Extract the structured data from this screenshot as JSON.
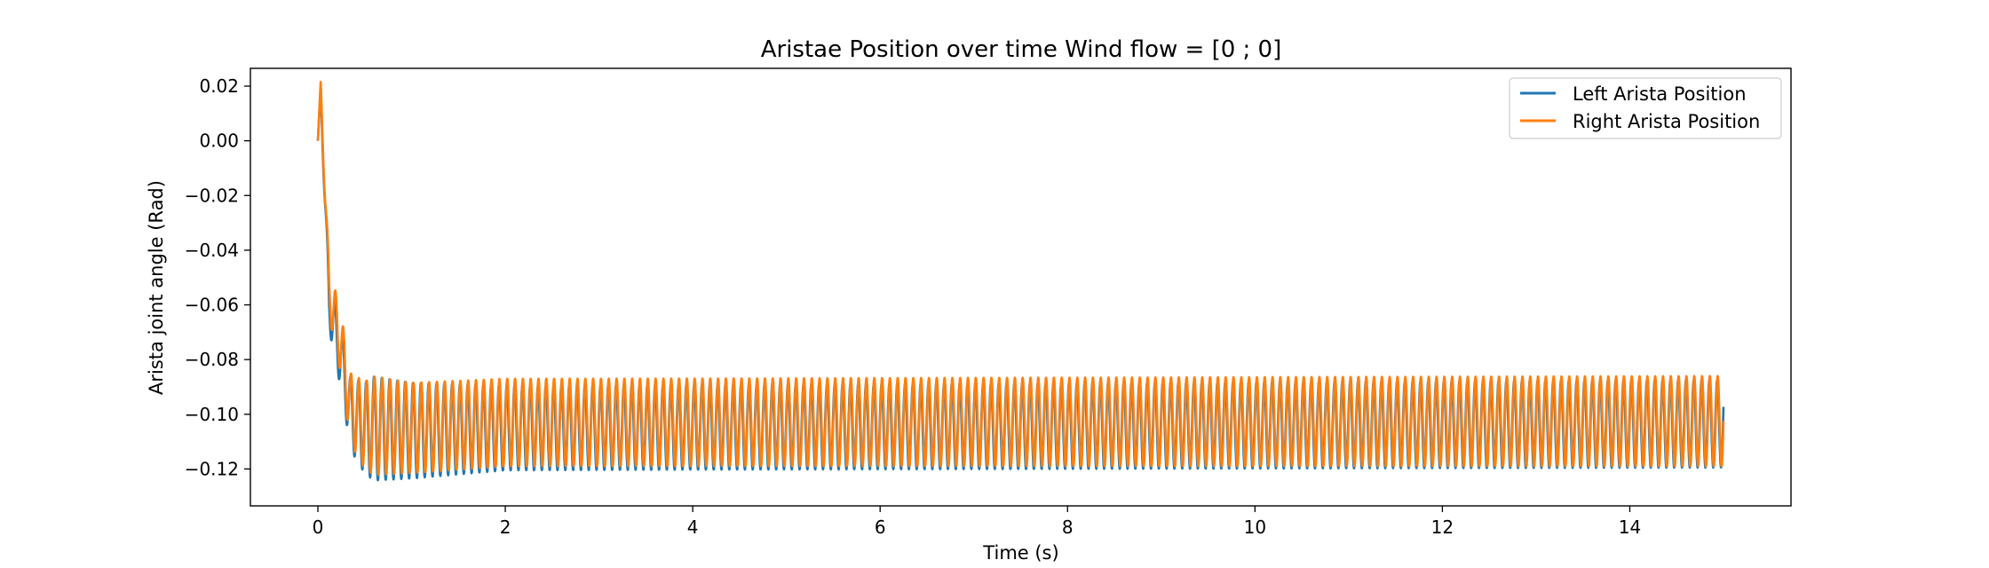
{
  "chart_data": {
    "type": "line",
    "title": "Aristae Position over time Wind flow = [0 ; 0]",
    "xlabel": "Time (s)",
    "ylabel": "Arista joint angle (Rad)",
    "xlim": [
      -0.72,
      15.72
    ],
    "ylim": [
      -0.1335,
      0.0265
    ],
    "xticks": [
      0,
      2,
      4,
      6,
      8,
      10,
      12,
      14
    ],
    "xtick_labels": [
      "0",
      "2",
      "4",
      "6",
      "8",
      "10",
      "12",
      "14"
    ],
    "yticks": [
      0.02,
      0.0,
      -0.02,
      -0.04,
      -0.06,
      -0.08,
      -0.1,
      -0.12
    ],
    "ytick_labels": [
      "0.02",
      "0.00",
      "−0.02",
      "−0.04",
      "−0.06",
      "−0.08",
      "−0.10",
      "−0.12"
    ],
    "grid": false,
    "legend": "top-right",
    "series": [
      {
        "name": "Left Arista Position",
        "color": "#1f77b4",
        "oscillation_hz": 12,
        "t_end": 15,
        "envelope": [
          {
            "t": 0.0,
            "y": 0.0
          },
          {
            "t": 0.03,
            "y": 0.018
          },
          {
            "t": 0.12,
            "y": -0.06
          },
          {
            "t": 0.25,
            "y": -0.08
          },
          {
            "t": 0.35,
            "y": -0.1
          },
          {
            "t": 0.5,
            "y": -0.105
          },
          {
            "t": 1.0,
            "y": -0.106
          },
          {
            "t": 2.0,
            "y": -0.105
          },
          {
            "t": 15.0,
            "y": -0.1035
          }
        ],
        "amplitude": [
          {
            "t": 0.0,
            "a": 0.0
          },
          {
            "t": 0.15,
            "a": 0.01
          },
          {
            "t": 0.3,
            "a": 0.012
          },
          {
            "t": 0.6,
            "a": 0.019
          },
          {
            "t": 1.0,
            "a": 0.0175
          },
          {
            "t": 2.0,
            "a": 0.0155
          },
          {
            "t": 4.0,
            "a": 0.0155
          },
          {
            "t": 15.0,
            "a": 0.016
          }
        ]
      },
      {
        "name": "Right Arista Position",
        "color": "#ff7f0e",
        "oscillation_hz": 12,
        "t_end": 15,
        "envelope": [
          {
            "t": 0.0,
            "y": 0.0
          },
          {
            "t": 0.03,
            "y": 0.02
          },
          {
            "t": 0.12,
            "y": -0.055
          },
          {
            "t": 0.25,
            "y": -0.075
          },
          {
            "t": 0.35,
            "y": -0.098
          },
          {
            "t": 0.5,
            "y": -0.104
          },
          {
            "t": 1.0,
            "y": -0.105
          },
          {
            "t": 2.0,
            "y": -0.103
          },
          {
            "t": 15.0,
            "y": -0.1025
          }
        ],
        "amplitude": [
          {
            "t": 0.0,
            "a": 0.0
          },
          {
            "t": 0.15,
            "a": 0.01
          },
          {
            "t": 0.3,
            "a": 0.012
          },
          {
            "t": 0.6,
            "a": 0.018
          },
          {
            "t": 1.0,
            "a": 0.0165
          },
          {
            "t": 2.0,
            "a": 0.016
          },
          {
            "t": 4.0,
            "a": 0.016
          },
          {
            "t": 15.0,
            "a": 0.0165
          }
        ]
      }
    ]
  }
}
